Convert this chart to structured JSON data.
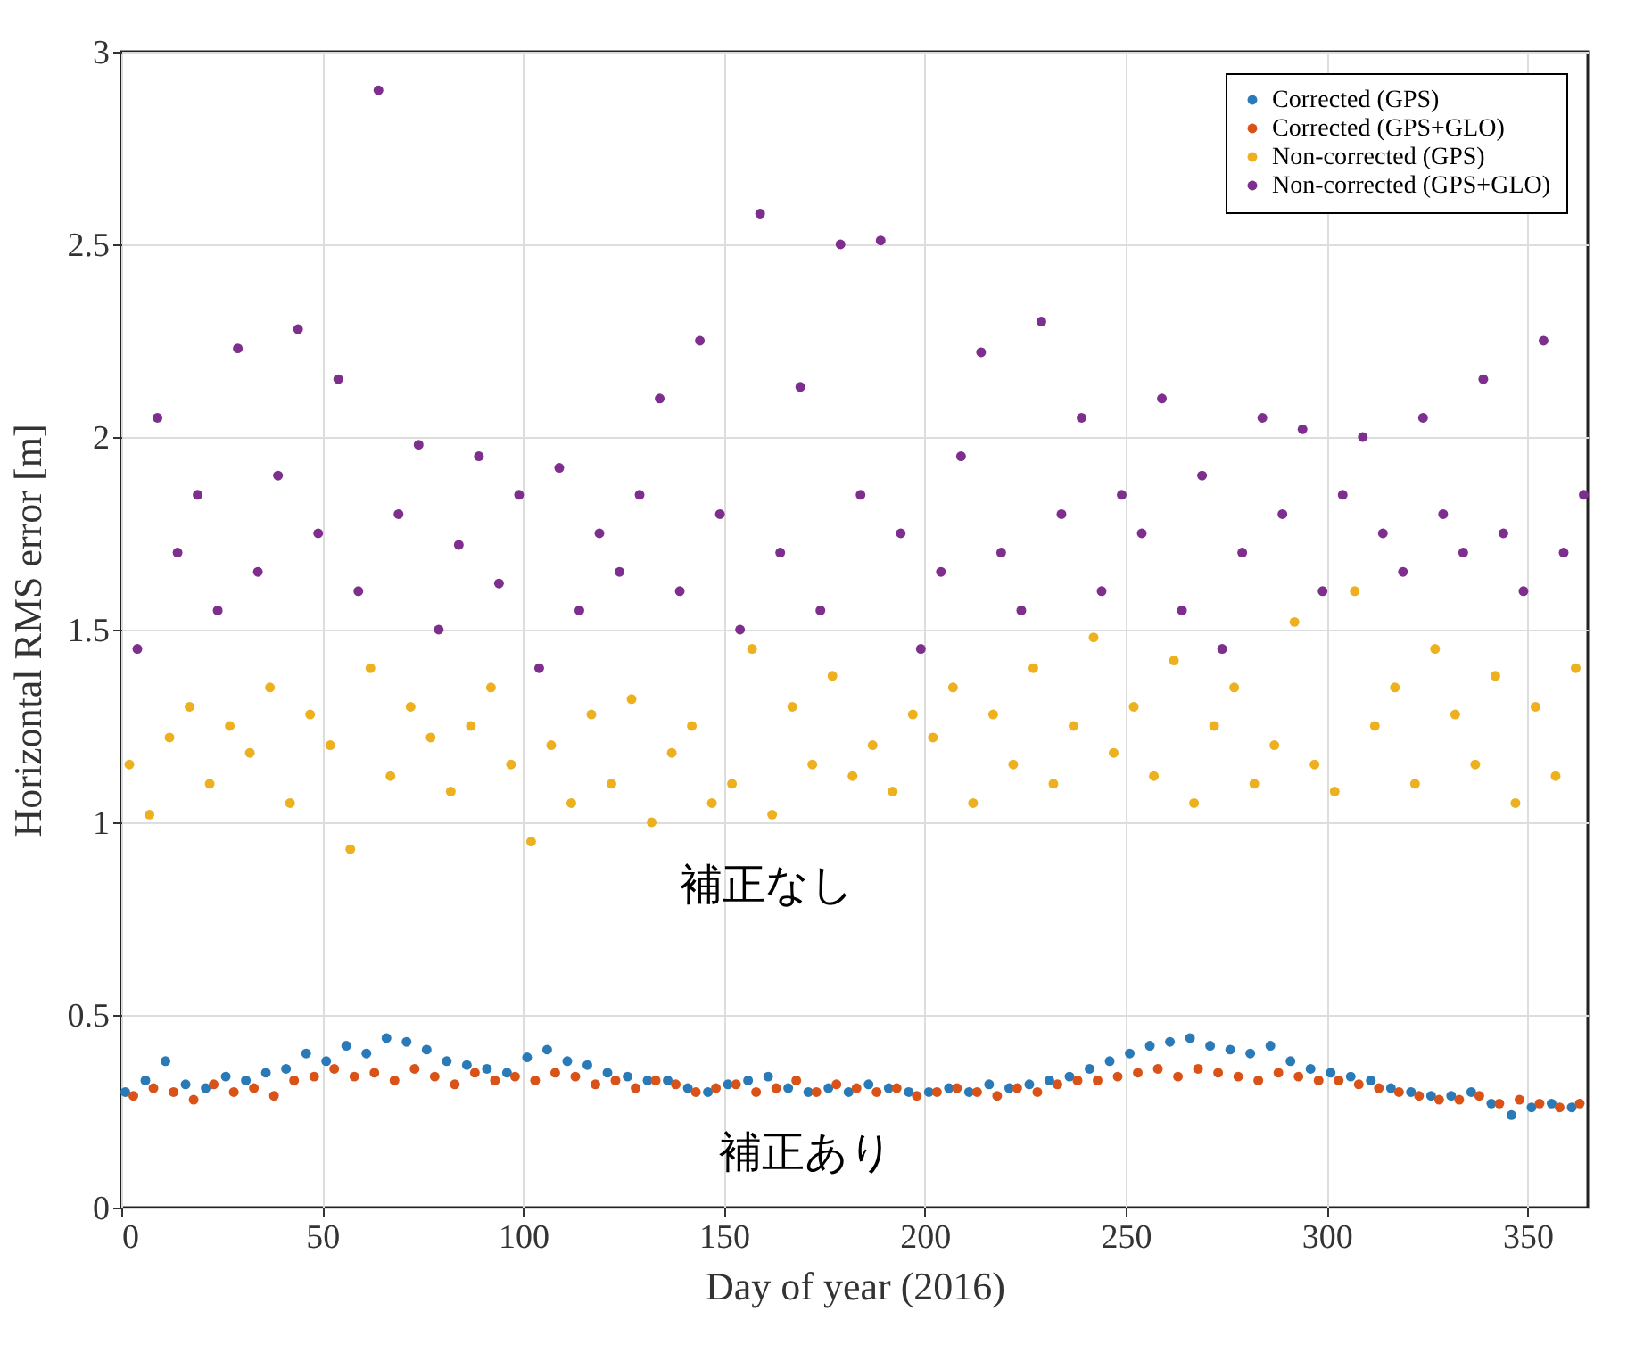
{
  "chart_data": {
    "type": "scatter",
    "xlabel": "Day of year (2016)",
    "ylabel": "Horizontal RMS error [m]",
    "xlim": [
      0,
      365
    ],
    "xticks": [
      0,
      50,
      100,
      150,
      200,
      250,
      300,
      350
    ],
    "ylim": [
      0,
      3
    ],
    "yticks": [
      0,
      0.5,
      1,
      1.5,
      2,
      2.5,
      3
    ],
    "grid": true,
    "legend": "top right",
    "marker": "circle",
    "annotations": [
      "補正なし",
      "補正あり"
    ],
    "series": [
      {
        "name": "Corrected (GPS)",
        "color": "#2a7ab8",
        "x": [
          1,
          6,
          11,
          16,
          21,
          26,
          31,
          36,
          41,
          46,
          51,
          56,
          61,
          66,
          71,
          76,
          81,
          86,
          91,
          96,
          101,
          106,
          111,
          116,
          121,
          126,
          131,
          136,
          141,
          146,
          151,
          156,
          161,
          166,
          171,
          176,
          181,
          186,
          191,
          196,
          201,
          206,
          211,
          216,
          221,
          226,
          231,
          236,
          241,
          246,
          251,
          256,
          261,
          266,
          271,
          276,
          281,
          286,
          291,
          296,
          301,
          306,
          311,
          316,
          321,
          326,
          331,
          336,
          341,
          346,
          351,
          356,
          361
        ],
        "values": [
          0.3,
          0.33,
          0.38,
          0.32,
          0.31,
          0.34,
          0.33,
          0.35,
          0.36,
          0.4,
          0.38,
          0.42,
          0.4,
          0.44,
          0.43,
          0.41,
          0.38,
          0.37,
          0.36,
          0.35,
          0.39,
          0.41,
          0.38,
          0.37,
          0.35,
          0.34,
          0.33,
          0.33,
          0.31,
          0.3,
          0.32,
          0.33,
          0.34,
          0.31,
          0.3,
          0.31,
          0.3,
          0.32,
          0.31,
          0.3,
          0.3,
          0.31,
          0.3,
          0.32,
          0.31,
          0.32,
          0.33,
          0.34,
          0.36,
          0.38,
          0.4,
          0.42,
          0.43,
          0.44,
          0.42,
          0.41,
          0.4,
          0.42,
          0.38,
          0.36,
          0.35,
          0.34,
          0.33,
          0.31,
          0.3,
          0.29,
          0.29,
          0.3,
          0.27,
          0.24,
          0.26,
          0.27,
          0.26
        ]
      },
      {
        "name": "Corrected (GPS+GLO)",
        "color": "#d95319",
        "x": [
          3,
          8,
          13,
          18,
          23,
          28,
          33,
          38,
          43,
          48,
          53,
          58,
          63,
          68,
          73,
          78,
          83,
          88,
          93,
          98,
          103,
          108,
          113,
          118,
          123,
          128,
          133,
          138,
          143,
          148,
          153,
          158,
          163,
          168,
          173,
          178,
          183,
          188,
          193,
          198,
          203,
          208,
          213,
          218,
          223,
          228,
          233,
          238,
          243,
          248,
          253,
          258,
          263,
          268,
          273,
          278,
          283,
          288,
          293,
          298,
          303,
          308,
          313,
          318,
          323,
          328,
          333,
          338,
          343,
          348,
          353,
          358,
          363
        ],
        "values": [
          0.29,
          0.31,
          0.3,
          0.28,
          0.32,
          0.3,
          0.31,
          0.29,
          0.33,
          0.34,
          0.36,
          0.34,
          0.35,
          0.33,
          0.36,
          0.34,
          0.32,
          0.35,
          0.33,
          0.34,
          0.33,
          0.35,
          0.34,
          0.32,
          0.33,
          0.31,
          0.33,
          0.32,
          0.3,
          0.31,
          0.32,
          0.3,
          0.31,
          0.33,
          0.3,
          0.32,
          0.31,
          0.3,
          0.31,
          0.29,
          0.3,
          0.31,
          0.3,
          0.29,
          0.31,
          0.3,
          0.32,
          0.33,
          0.33,
          0.34,
          0.35,
          0.36,
          0.34,
          0.36,
          0.35,
          0.34,
          0.33,
          0.35,
          0.34,
          0.33,
          0.33,
          0.32,
          0.31,
          0.3,
          0.29,
          0.28,
          0.28,
          0.29,
          0.27,
          0.28,
          0.27,
          0.26,
          0.27
        ]
      },
      {
        "name": "Non-corrected (GPS)",
        "color": "#edb120",
        "x": [
          2,
          7,
          12,
          17,
          22,
          27,
          32,
          37,
          42,
          47,
          52,
          57,
          62,
          67,
          72,
          77,
          82,
          87,
          92,
          97,
          102,
          107,
          112,
          117,
          122,
          127,
          132,
          137,
          142,
          147,
          152,
          157,
          162,
          167,
          172,
          177,
          182,
          187,
          192,
          197,
          202,
          207,
          212,
          217,
          222,
          227,
          232,
          237,
          242,
          247,
          252,
          257,
          262,
          267,
          272,
          277,
          282,
          287,
          292,
          297,
          302,
          307,
          312,
          317,
          322,
          327,
          332,
          337,
          342,
          347,
          352,
          357,
          362
        ],
        "values": [
          1.15,
          1.02,
          1.22,
          1.3,
          1.1,
          1.25,
          1.18,
          1.35,
          1.05,
          1.28,
          1.2,
          0.93,
          1.4,
          1.12,
          1.3,
          1.22,
          1.08,
          1.25,
          1.35,
          1.15,
          0.95,
          1.2,
          1.05,
          1.28,
          1.1,
          1.32,
          1.0,
          1.18,
          1.25,
          1.05,
          1.1,
          1.45,
          1.02,
          1.3,
          1.15,
          1.38,
          1.12,
          1.2,
          1.08,
          1.28,
          1.22,
          1.35,
          1.05,
          1.28,
          1.15,
          1.4,
          1.1,
          1.25,
          1.48,
          1.18,
          1.3,
          1.12,
          1.42,
          1.05,
          1.25,
          1.35,
          1.1,
          1.2,
          1.52,
          1.15,
          1.08,
          1.6,
          1.25,
          1.35,
          1.1,
          1.45,
          1.28,
          1.15,
          1.38,
          1.05,
          1.3,
          1.12,
          1.4
        ]
      },
      {
        "name": "Non-corrected (GPS+GLO)",
        "color": "#7e2f8e",
        "x": [
          4,
          9,
          14,
          19,
          24,
          29,
          34,
          39,
          44,
          49,
          54,
          59,
          64,
          69,
          74,
          79,
          84,
          89,
          94,
          99,
          104,
          109,
          114,
          119,
          124,
          129,
          134,
          139,
          144,
          149,
          154,
          159,
          164,
          169,
          174,
          179,
          184,
          189,
          194,
          199,
          204,
          209,
          214,
          219,
          224,
          229,
          234,
          239,
          244,
          249,
          254,
          259,
          264,
          269,
          274,
          279,
          284,
          289,
          294,
          299,
          304,
          309,
          314,
          319,
          324,
          329,
          334,
          339,
          344,
          349,
          354,
          359,
          364
        ],
        "values": [
          1.45,
          2.05,
          1.7,
          1.85,
          1.55,
          2.23,
          1.65,
          1.9,
          2.28,
          1.75,
          2.15,
          1.6,
          2.9,
          1.8,
          1.98,
          1.5,
          1.72,
          1.95,
          1.62,
          1.85,
          1.4,
          1.92,
          1.55,
          1.75,
          1.65,
          1.85,
          2.1,
          1.6,
          2.25,
          1.8,
          1.5,
          2.58,
          1.7,
          2.13,
          1.55,
          2.5,
          1.85,
          2.51,
          1.75,
          1.45,
          1.65,
          1.95,
          2.22,
          1.7,
          1.55,
          2.3,
          1.8,
          2.05,
          1.6,
          1.85,
          1.75,
          2.1,
          1.55,
          1.9,
          1.45,
          1.7,
          2.05,
          1.8,
          2.02,
          1.6,
          1.85,
          2.0,
          1.75,
          1.65,
          2.05,
          1.8,
          1.7,
          2.15,
          1.75,
          1.6,
          2.25,
          1.7,
          1.85
        ]
      }
    ]
  }
}
